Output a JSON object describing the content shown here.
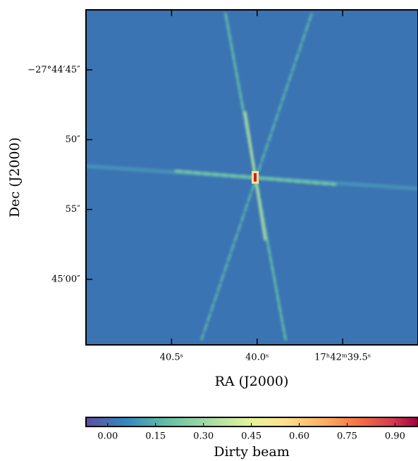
{
  "chart_data": {
    "type": "image",
    "xlabel": "RA (J2000)",
    "ylabel": "Dec (J2000)",
    "xlim": [
      41.0,
      39.06
    ],
    "xticks": [
      {
        "value": 40.5,
        "label": "40.5ˢ"
      },
      {
        "value": 40.0,
        "label": "40.0ˢ"
      },
      {
        "value": 39.5,
        "label": "17ʰ42ᵐ39.5ˢ"
      }
    ],
    "ylim": [
      64.7,
      40.7
    ],
    "yticks": [
      {
        "value": 45,
        "label": "−27°44′45″"
      },
      {
        "value": 50,
        "label": "50″"
      },
      {
        "value": 55,
        "label": "55″"
      },
      {
        "value": 60,
        "label": "45′00″"
      }
    ],
    "colorbar": {
      "label": "Dirty beam",
      "clim": [
        -0.068,
        0.972
      ],
      "ticks": [
        {
          "value": 0,
          "label": "0.00"
        },
        {
          "value": 0.15,
          "label": "0.15"
        },
        {
          "value": 0.3,
          "label": "0.30"
        },
        {
          "value": 0.45,
          "label": "0.45"
        },
        {
          "value": 0.6,
          "label": "0.60"
        },
        {
          "value": 0.75,
          "label": "0.75"
        },
        {
          "value": 0.9,
          "label": "0.90"
        }
      ]
    }
  }
}
